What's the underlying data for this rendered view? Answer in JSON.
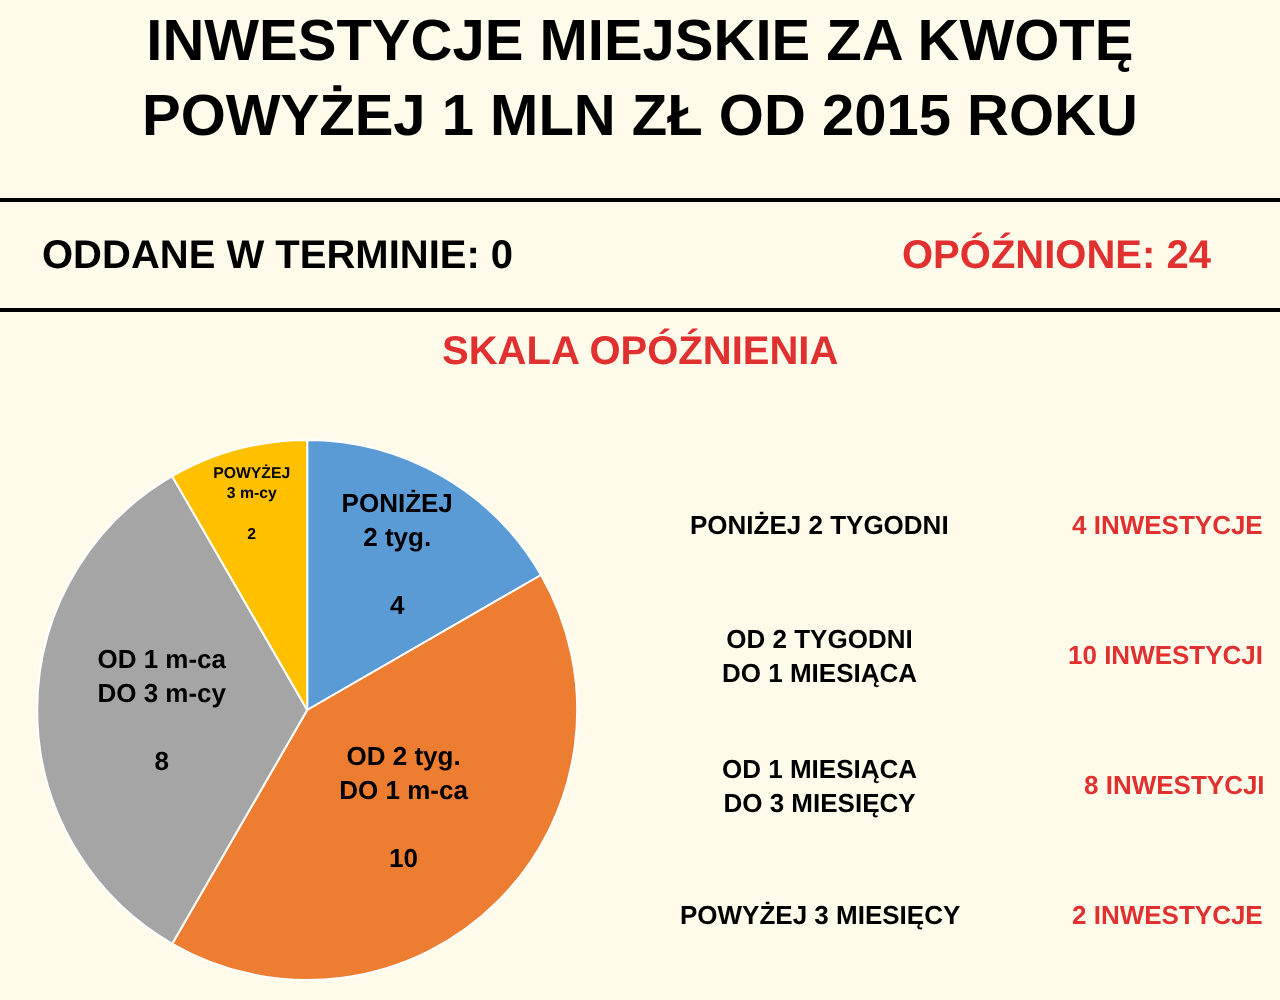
{
  "chart_data": {
    "type": "pie",
    "title": "INWESTYCJE MIEJSKIE ZA KWOTĘ\nPOWYŻEJ 1 MLN ZŁ OD 2015 ROKU",
    "subtitle": "SKALA OPÓŹNIENIA",
    "categories": [
      "PONIŻEJ\n2 tyg.",
      "OD 2 tyg.\nDO 1 m-ca",
      "OD 1 m-ca\nDO 3 m-cy",
      "POWYŻEJ\n3 m-cy"
    ],
    "values": [
      4,
      10,
      8,
      2
    ],
    "colors": [
      "#5b9bd5",
      "#ed7d31",
      "#a5a5a5",
      "#ffc000"
    ],
    "data_labels": true,
    "annotations": [
      "ODDANE W TERMINIE: 0",
      "OPÓŹNIONE: 24",
      "PONIŻEJ 2 TYGODNI",
      "4 INWESTYCJE",
      "OD 2 TYGODNI\nDO 1 MIESIĄCA",
      "10 INWESTYCJI",
      "OD 1 MIESIĄCA\nDO 3 MIESIĘCY",
      "8 INWESTYCJI",
      "POWYŻEJ 3 MIESIĘCY",
      "2 INWESTYCJE"
    ]
  }
}
